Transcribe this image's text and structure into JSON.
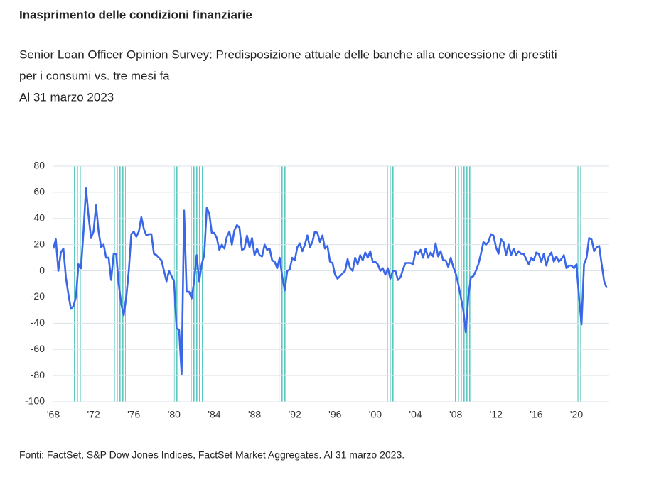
{
  "chart_data": {
    "type": "line",
    "title": "Inasprimento delle condizioni finanziarie",
    "subtitle": [
      "Senior Loan Officer Opinion Survey: Predisposizione attuale delle banche alla concessione di prestiti",
      "per i consumi vs. tre mesi fa",
      "Al 31 marzo 2023"
    ],
    "source": "Fonti: FactSet, S&P Dow Jones Indices, FactSet Market Aggregates. Al 31 marzo 2023.",
    "color": "#3a66e8",
    "recession_color": "#5cc9c0",
    "grid": true,
    "xlim": [
      1968,
      2023.25
    ],
    "ylim": [
      -100,
      80
    ],
    "yticks": [
      -100,
      -80,
      -60,
      -40,
      -20,
      0,
      20,
      40,
      60,
      80
    ],
    "xticks": [
      {
        "value": 1968,
        "label": "'68"
      },
      {
        "value": 1972,
        "label": "'72"
      },
      {
        "value": 1976,
        "label": "'76"
      },
      {
        "value": 1980,
        "label": "'80"
      },
      {
        "value": 1984,
        "label": "'84"
      },
      {
        "value": 1988,
        "label": "'88"
      },
      {
        "value": 1992,
        "label": "'92"
      },
      {
        "value": 1996,
        "label": "'96"
      },
      {
        "value": 2000,
        "label": "'00"
      },
      {
        "value": 2004,
        "label": "'04"
      },
      {
        "value": 2008,
        "label": "'08"
      },
      {
        "value": 2012,
        "label": "'12"
      },
      {
        "value": 2016,
        "label": "'16"
      },
      {
        "value": 2020,
        "label": "'20"
      }
    ],
    "recessions": [
      [
        1969.9,
        1970.9
      ],
      [
        1973.9,
        1975.2
      ],
      [
        1980.0,
        1980.5
      ],
      [
        1981.5,
        1982.9
      ],
      [
        1990.5,
        1991.2
      ],
      [
        2001.2,
        2001.9
      ],
      [
        2007.9,
        2009.5
      ],
      [
        2020.1,
        2020.4
      ]
    ],
    "x": [
      1968,
      1968.25,
      1968.5,
      1968.75,
      1969,
      1969.25,
      1969.5,
      1969.75,
      1970,
      1970.25,
      1970.5,
      1970.75,
      1971,
      1971.25,
      1971.5,
      1971.75,
      1972,
      1972.25,
      1972.5,
      1972.75,
      1973,
      1973.25,
      1973.5,
      1973.75,
      1974,
      1974.25,
      1974.5,
      1974.75,
      1975,
      1975.25,
      1975.5,
      1975.75,
      1976,
      1976.25,
      1976.5,
      1976.75,
      1977,
      1977.25,
      1977.5,
      1977.75,
      1978,
      1978.25,
      1978.5,
      1978.75,
      1979,
      1979.25,
      1979.5,
      1979.75,
      1980,
      1980.25,
      1980.5,
      1980.75,
      1981,
      1981.25,
      1981.5,
      1981.75,
      1982,
      1982.25,
      1982.5,
      1982.75,
      1983,
      1983.25,
      1983.5,
      1983.75,
      1984,
      1984.25,
      1984.5,
      1984.75,
      1985,
      1985.25,
      1985.5,
      1985.75,
      1986,
      1986.25,
      1986.5,
      1986.75,
      1987,
      1987.25,
      1987.5,
      1987.75,
      1988,
      1988.25,
      1988.5,
      1988.75,
      1989,
      1989.25,
      1989.5,
      1989.75,
      1990,
      1990.25,
      1990.5,
      1990.75,
      1991,
      1991.25,
      1991.5,
      1991.75,
      1992,
      1992.25,
      1992.5,
      1992.75,
      1993,
      1993.25,
      1993.5,
      1993.75,
      1994,
      1994.25,
      1994.5,
      1994.75,
      1995,
      1995.25,
      1995.5,
      1995.75,
      1996,
      1996.25,
      1996.5,
      1996.75,
      1997,
      1997.25,
      1997.5,
      1997.75,
      1998,
      1998.25,
      1998.5,
      1998.75,
      1999,
      1999.25,
      1999.5,
      1999.75,
      2000,
      2000.25,
      2000.5,
      2000.75,
      2001,
      2001.25,
      2001.5,
      2001.75,
      2002,
      2002.25,
      2002.5,
      2002.75,
      2003,
      2003.25,
      2003.5,
      2003.75,
      2004,
      2004.25,
      2004.5,
      2004.75,
      2005,
      2005.25,
      2005.5,
      2005.75,
      2006,
      2006.25,
      2006.5,
      2006.75,
      2007,
      2007.25,
      2007.5,
      2007.75,
      2008,
      2008.25,
      2008.5,
      2008.75,
      2009,
      2009.25,
      2009.5,
      2009.75,
      2010,
      2010.25,
      2010.5,
      2010.75,
      2011,
      2011.25,
      2011.5,
      2011.75,
      2012,
      2012.25,
      2012.5,
      2012.75,
      2013,
      2013.25,
      2013.5,
      2013.75,
      2014,
      2014.25,
      2014.5,
      2014.75,
      2015,
      2015.25,
      2015.5,
      2015.75,
      2016,
      2016.25,
      2016.5,
      2016.75,
      2017,
      2017.25,
      2017.5,
      2017.75,
      2018,
      2018.25,
      2018.5,
      2018.75,
      2019,
      2019.25,
      2019.5,
      2019.75,
      2020,
      2020.25,
      2020.5,
      2020.75,
      2021,
      2021.25,
      2021.5,
      2021.75,
      2022,
      2022.25,
      2022.5,
      2022.75,
      2023
    ],
    "values": [
      17,
      24,
      0,
      14,
      17,
      -5,
      -18,
      -29,
      -27,
      -20,
      5,
      2,
      30,
      63,
      42,
      25,
      30,
      50,
      30,
      18,
      20,
      10,
      10,
      -7,
      13,
      13,
      -10,
      -25,
      -34,
      -20,
      0,
      28,
      30,
      26,
      30,
      41,
      32,
      27,
      28,
      28,
      13,
      12,
      10,
      8,
      0,
      -8,
      0,
      -4,
      -8,
      -44,
      -45,
      -79,
      46,
      -16,
      -16,
      -21,
      -8,
      12,
      -8,
      5,
      12,
      48,
      44,
      29,
      29,
      25,
      16,
      20,
      17,
      26,
      30,
      20,
      31,
      35,
      33,
      16,
      17,
      27,
      18,
      25,
      12,
      17,
      12,
      11,
      20,
      16,
      17,
      8,
      7,
      2,
      10,
      -4,
      -15,
      0,
      1,
      10,
      8,
      18,
      21,
      15,
      20,
      27,
      18,
      22,
      30,
      29,
      22,
      27,
      17,
      19,
      7,
      6,
      -3,
      -6,
      -4,
      -2,
      0,
      9,
      2,
      0,
      10,
      5,
      12,
      8,
      14,
      10,
      15,
      7,
      7,
      5,
      0,
      2,
      -3,
      2,
      -6,
      0,
      0,
      -7,
      -5,
      1,
      6,
      6,
      6,
      5,
      15,
      13,
      16,
      10,
      17,
      10,
      14,
      11,
      21,
      11,
      15,
      8,
      8,
      3,
      10,
      3,
      -2,
      -10,
      -20,
      -30,
      -47,
      -20,
      -5,
      -4,
      0,
      5,
      13,
      22,
      20,
      22,
      28,
      27,
      18,
      13,
      24,
      22,
      12,
      20,
      12,
      17,
      12,
      15,
      13,
      13,
      9,
      5,
      10,
      8,
      14,
      13,
      7,
      13,
      4,
      11,
      14,
      7,
      11,
      7,
      9,
      12,
      2,
      4,
      4,
      2,
      5,
      -20,
      -41,
      5,
      10,
      25,
      24,
      15,
      18,
      19,
      5,
      -8,
      -13
    ]
  }
}
